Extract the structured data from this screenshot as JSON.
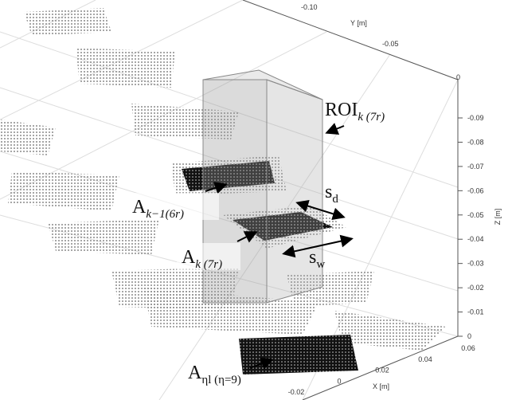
{
  "z_axis": {
    "label": "Z [m]",
    "ticks": [
      "-0.09",
      "-0.08",
      "-0.07",
      "-0.06",
      "-0.05",
      "-0.04",
      "-0.03",
      "-0.02",
      "-0.01",
      "0"
    ]
  },
  "y_axis": {
    "label": "Y [m]",
    "ticks": [
      "-0.10",
      "-0.05",
      "0"
    ]
  },
  "x_axis": {
    "label": "X [m]",
    "ticks": [
      "0.06",
      "0.04",
      "0.02",
      "0",
      "-0.02"
    ]
  },
  "annotations": {
    "roi": {
      "main": "ROI",
      "sub": "k (7r)"
    },
    "a_prev": {
      "main": "A",
      "sub": "k−1(6r)"
    },
    "a_k": {
      "main": "A",
      "sub": "k (7r)"
    },
    "s_d": {
      "main": "s",
      "sub": "d"
    },
    "s_w": {
      "main": "s",
      "sub": "w"
    },
    "a_eta": {
      "main": "A",
      "sub": "ηl (η=9)"
    }
  }
}
